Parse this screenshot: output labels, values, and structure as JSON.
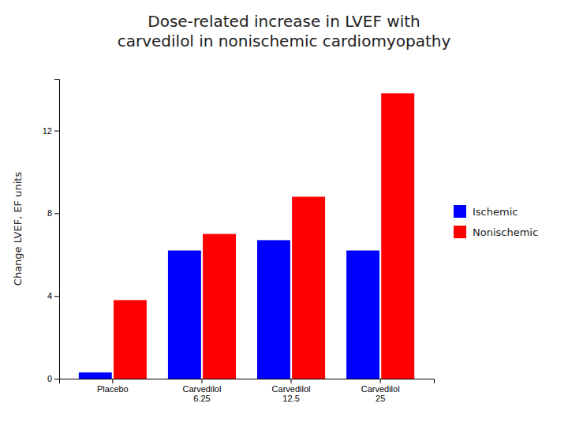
{
  "chart_data": {
    "type": "bar",
    "title": "Dose-related increase in LVEF with\ncarvedilol in nonischemic cardiomyopathy",
    "ylabel": "Change LVEF, EF units",
    "categories": [
      "Placebo",
      "Carvedilol\n6.25",
      "Carvedilol\n12.5",
      "Carvedilol\n25"
    ],
    "series": [
      {
        "name": "Ischemic",
        "color": "#0000FF",
        "values": [
          0.3,
          6.2,
          6.7,
          6.2
        ]
      },
      {
        "name": "Nonischemic",
        "color": "#FF0000",
        "values": [
          3.8,
          7.0,
          8.8,
          13.8
        ]
      }
    ],
    "ylim": [
      0,
      14.5
    ],
    "yticks": [
      0,
      4,
      8,
      12
    ],
    "grid": false,
    "legend": "right"
  }
}
